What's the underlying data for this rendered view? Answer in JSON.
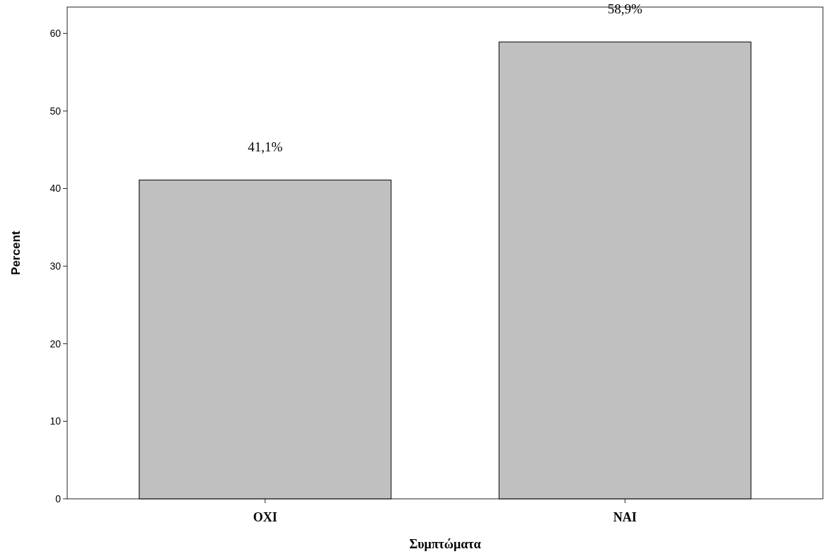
{
  "chart_data": {
    "type": "bar",
    "xlabel": "Συμπτώματα",
    "ylabel": "Percent",
    "categories": [
      "OXI",
      "NAI"
    ],
    "values": [
      41.1,
      58.9
    ],
    "value_labels": [
      "41,1%",
      "58,9%"
    ],
    "color": "#c0c0c0",
    "ylim": [
      0,
      63.4
    ],
    "yticks": [
      0,
      10,
      20,
      30,
      40,
      50,
      60
    ]
  }
}
